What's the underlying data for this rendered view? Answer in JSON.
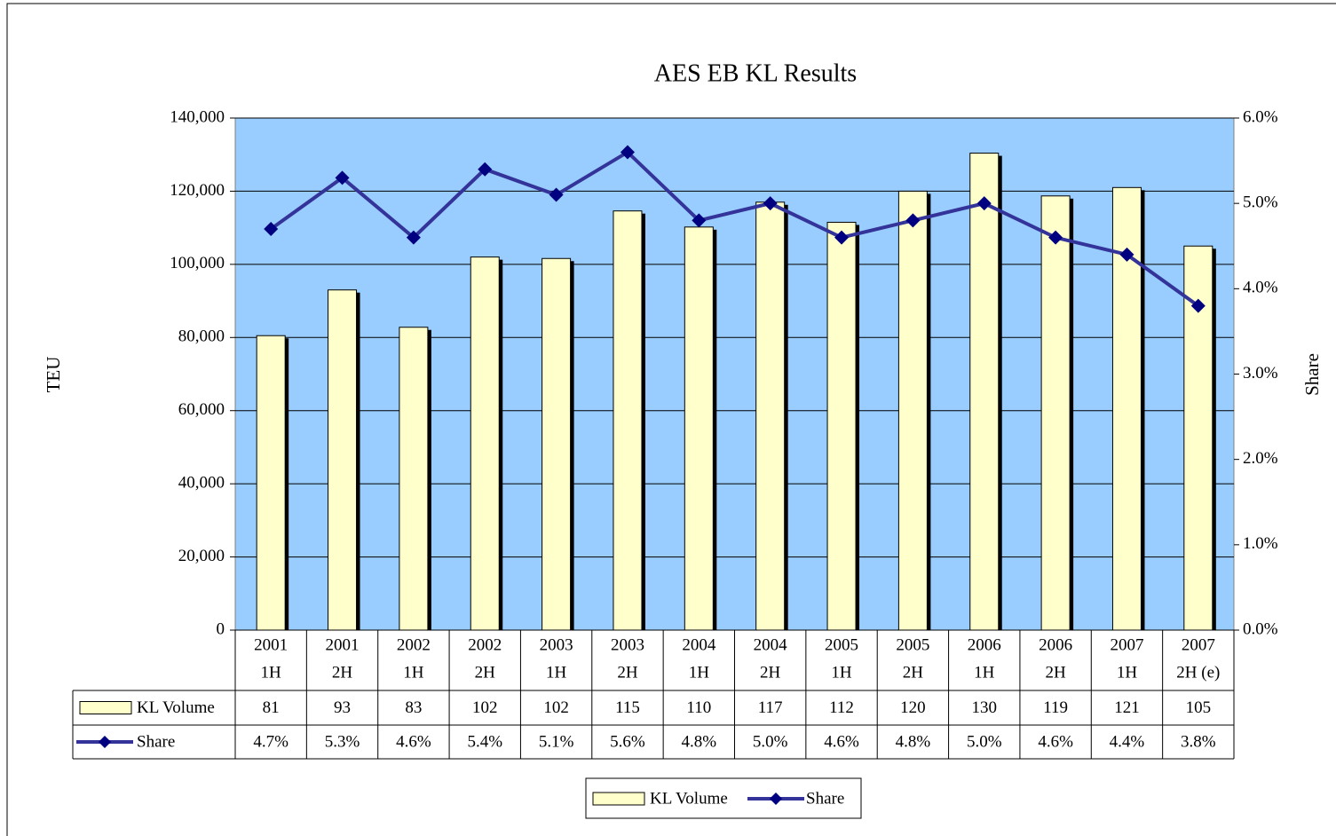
{
  "chart_data": {
    "type": "bar_line",
    "title": "AES EB KL Results",
    "y_label": "TEU",
    "y2_label": "Share",
    "categories": [
      [
        "2001",
        "1H"
      ],
      [
        "2001",
        "2H"
      ],
      [
        "2002",
        "1H"
      ],
      [
        "2002",
        "2H"
      ],
      [
        "2003",
        "1H"
      ],
      [
        "2003",
        "2H"
      ],
      [
        "2004",
        "1H"
      ],
      [
        "2004",
        "2H"
      ],
      [
        "2005",
        "1H"
      ],
      [
        "2005",
        "2H"
      ],
      [
        "2006",
        "1H"
      ],
      [
        "2006",
        "2H"
      ],
      [
        "2007",
        "1H"
      ],
      [
        "2007",
        "2H (e)"
      ]
    ],
    "series": [
      {
        "name": "KL Volume",
        "type": "bar",
        "color": "#ffffcc",
        "values": [
          80500,
          93000,
          82800,
          102000,
          101600,
          114600,
          110200,
          117000,
          111500,
          120000,
          130400,
          118700,
          121000,
          105000
        ],
        "value_labels": [
          "81",
          "93",
          "83",
          "102",
          "102",
          "115",
          "110",
          "117",
          "112",
          "120",
          "130",
          "119",
          "121",
          "105"
        ]
      },
      {
        "name": "Share",
        "type": "line",
        "axis": "y2",
        "color": "#333399",
        "marker_color": "#000080",
        "values": [
          4.7,
          5.3,
          4.6,
          5.4,
          5.1,
          5.6,
          4.8,
          5.0,
          4.6,
          4.8,
          5.0,
          4.6,
          4.4,
          3.8
        ],
        "value_labels": [
          "4.7%",
          "5.3%",
          "4.6%",
          "5.4%",
          "5.1%",
          "5.6%",
          "4.8%",
          "5.0%",
          "4.6%",
          "4.8%",
          "5.0%",
          "4.6%",
          "4.4%",
          "3.8%"
        ]
      }
    ],
    "ylim": [
      0,
      140000
    ],
    "yticks": [
      0,
      {
        "value": 20000,
        "label": "20,000"
      },
      {
        "value": 40000,
        "label": "40,000"
      },
      {
        "value": 60000,
        "label": "60,000"
      },
      {
        "value": 80000,
        "label": "80,000"
      },
      {
        "value": 100000,
        "label": "100,000"
      },
      {
        "value": 120000,
        "label": "120,000"
      },
      {
        "value": 140000,
        "label": "140,000"
      }
    ],
    "y2lim": [
      0,
      6
    ],
    "y2ticks": [
      {
        "value": 0,
        "label": "0.0%"
      },
      {
        "value": 1,
        "label": "1.0%"
      },
      {
        "value": 2,
        "label": "2.0%"
      },
      {
        "value": 3,
        "label": "3.0%"
      },
      {
        "value": 4,
        "label": "4.0%"
      },
      {
        "value": 5,
        "label": "5.0%"
      },
      {
        "value": 6,
        "label": "6.0%"
      }
    ],
    "grid": true,
    "plot_background": "#99ccff",
    "legend": "bottom"
  }
}
